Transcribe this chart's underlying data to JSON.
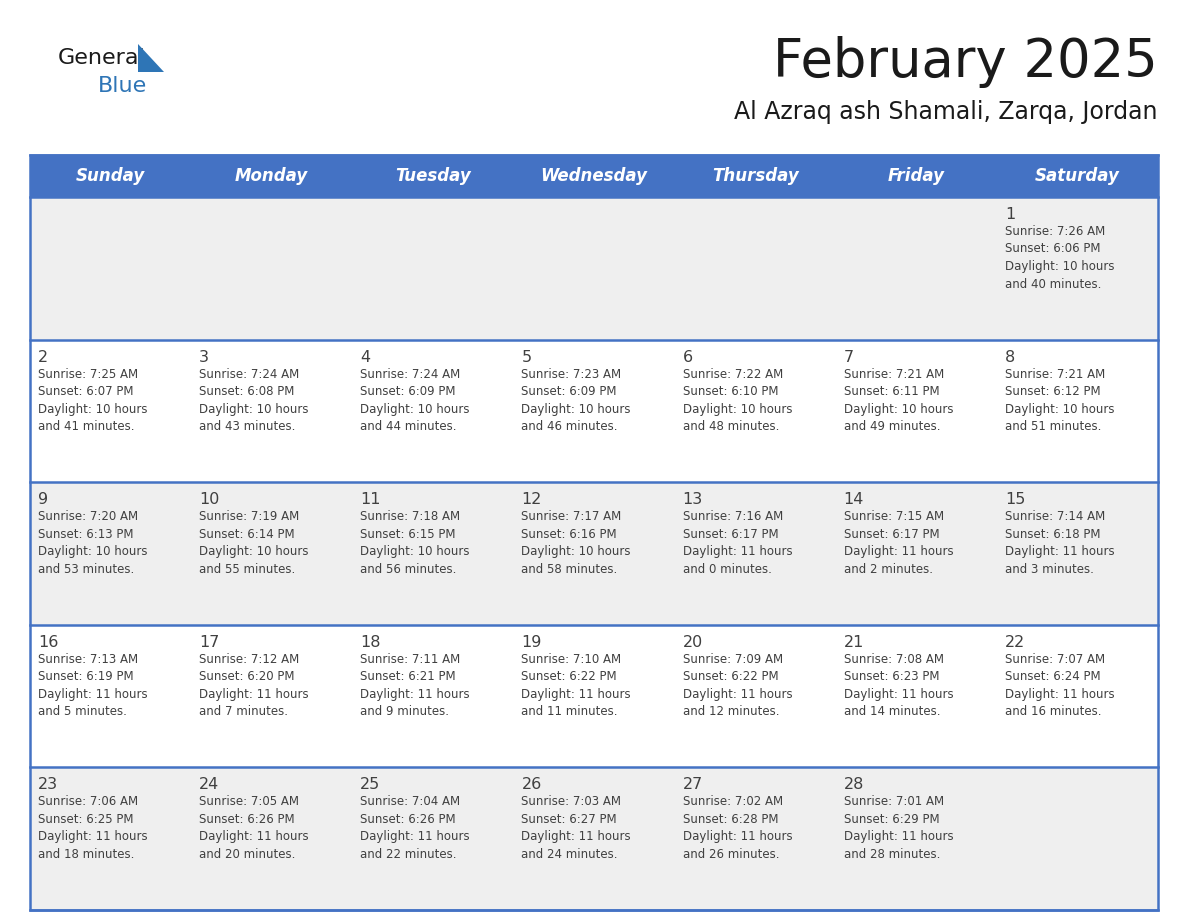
{
  "title": "February 2025",
  "subtitle": "Al Azraq ash Shamali, Zarqa, Jordan",
  "header_color": "#4472C4",
  "header_text_color": "#FFFFFF",
  "background_color": "#FFFFFF",
  "alt_row_color": "#EFEFEF",
  "border_color": "#4472C4",
  "text_color": "#404040",
  "days_of_week": [
    "Sunday",
    "Monday",
    "Tuesday",
    "Wednesday",
    "Thursday",
    "Friday",
    "Saturday"
  ],
  "weeks": [
    [
      {
        "day": "",
        "info": ""
      },
      {
        "day": "",
        "info": ""
      },
      {
        "day": "",
        "info": ""
      },
      {
        "day": "",
        "info": ""
      },
      {
        "day": "",
        "info": ""
      },
      {
        "day": "",
        "info": ""
      },
      {
        "day": "1",
        "info": "Sunrise: 7:26 AM\nSunset: 6:06 PM\nDaylight: 10 hours\nand 40 minutes."
      }
    ],
    [
      {
        "day": "2",
        "info": "Sunrise: 7:25 AM\nSunset: 6:07 PM\nDaylight: 10 hours\nand 41 minutes."
      },
      {
        "day": "3",
        "info": "Sunrise: 7:24 AM\nSunset: 6:08 PM\nDaylight: 10 hours\nand 43 minutes."
      },
      {
        "day": "4",
        "info": "Sunrise: 7:24 AM\nSunset: 6:09 PM\nDaylight: 10 hours\nand 44 minutes."
      },
      {
        "day": "5",
        "info": "Sunrise: 7:23 AM\nSunset: 6:09 PM\nDaylight: 10 hours\nand 46 minutes."
      },
      {
        "day": "6",
        "info": "Sunrise: 7:22 AM\nSunset: 6:10 PM\nDaylight: 10 hours\nand 48 minutes."
      },
      {
        "day": "7",
        "info": "Sunrise: 7:21 AM\nSunset: 6:11 PM\nDaylight: 10 hours\nand 49 minutes."
      },
      {
        "day": "8",
        "info": "Sunrise: 7:21 AM\nSunset: 6:12 PM\nDaylight: 10 hours\nand 51 minutes."
      }
    ],
    [
      {
        "day": "9",
        "info": "Sunrise: 7:20 AM\nSunset: 6:13 PM\nDaylight: 10 hours\nand 53 minutes."
      },
      {
        "day": "10",
        "info": "Sunrise: 7:19 AM\nSunset: 6:14 PM\nDaylight: 10 hours\nand 55 minutes."
      },
      {
        "day": "11",
        "info": "Sunrise: 7:18 AM\nSunset: 6:15 PM\nDaylight: 10 hours\nand 56 minutes."
      },
      {
        "day": "12",
        "info": "Sunrise: 7:17 AM\nSunset: 6:16 PM\nDaylight: 10 hours\nand 58 minutes."
      },
      {
        "day": "13",
        "info": "Sunrise: 7:16 AM\nSunset: 6:17 PM\nDaylight: 11 hours\nand 0 minutes."
      },
      {
        "day": "14",
        "info": "Sunrise: 7:15 AM\nSunset: 6:17 PM\nDaylight: 11 hours\nand 2 minutes."
      },
      {
        "day": "15",
        "info": "Sunrise: 7:14 AM\nSunset: 6:18 PM\nDaylight: 11 hours\nand 3 minutes."
      }
    ],
    [
      {
        "day": "16",
        "info": "Sunrise: 7:13 AM\nSunset: 6:19 PM\nDaylight: 11 hours\nand 5 minutes."
      },
      {
        "day": "17",
        "info": "Sunrise: 7:12 AM\nSunset: 6:20 PM\nDaylight: 11 hours\nand 7 minutes."
      },
      {
        "day": "18",
        "info": "Sunrise: 7:11 AM\nSunset: 6:21 PM\nDaylight: 11 hours\nand 9 minutes."
      },
      {
        "day": "19",
        "info": "Sunrise: 7:10 AM\nSunset: 6:22 PM\nDaylight: 11 hours\nand 11 minutes."
      },
      {
        "day": "20",
        "info": "Sunrise: 7:09 AM\nSunset: 6:22 PM\nDaylight: 11 hours\nand 12 minutes."
      },
      {
        "day": "21",
        "info": "Sunrise: 7:08 AM\nSunset: 6:23 PM\nDaylight: 11 hours\nand 14 minutes."
      },
      {
        "day": "22",
        "info": "Sunrise: 7:07 AM\nSunset: 6:24 PM\nDaylight: 11 hours\nand 16 minutes."
      }
    ],
    [
      {
        "day": "23",
        "info": "Sunrise: 7:06 AM\nSunset: 6:25 PM\nDaylight: 11 hours\nand 18 minutes."
      },
      {
        "day": "24",
        "info": "Sunrise: 7:05 AM\nSunset: 6:26 PM\nDaylight: 11 hours\nand 20 minutes."
      },
      {
        "day": "25",
        "info": "Sunrise: 7:04 AM\nSunset: 6:26 PM\nDaylight: 11 hours\nand 22 minutes."
      },
      {
        "day": "26",
        "info": "Sunrise: 7:03 AM\nSunset: 6:27 PM\nDaylight: 11 hours\nand 24 minutes."
      },
      {
        "day": "27",
        "info": "Sunrise: 7:02 AM\nSunset: 6:28 PM\nDaylight: 11 hours\nand 26 minutes."
      },
      {
        "day": "28",
        "info": "Sunrise: 7:01 AM\nSunset: 6:29 PM\nDaylight: 11 hours\nand 28 minutes."
      },
      {
        "day": "",
        "info": ""
      }
    ]
  ],
  "logo_triangle_color": "#2E75B6",
  "logo_general_color": "#1a1a1a",
  "logo_blue_color": "#2E75B6"
}
